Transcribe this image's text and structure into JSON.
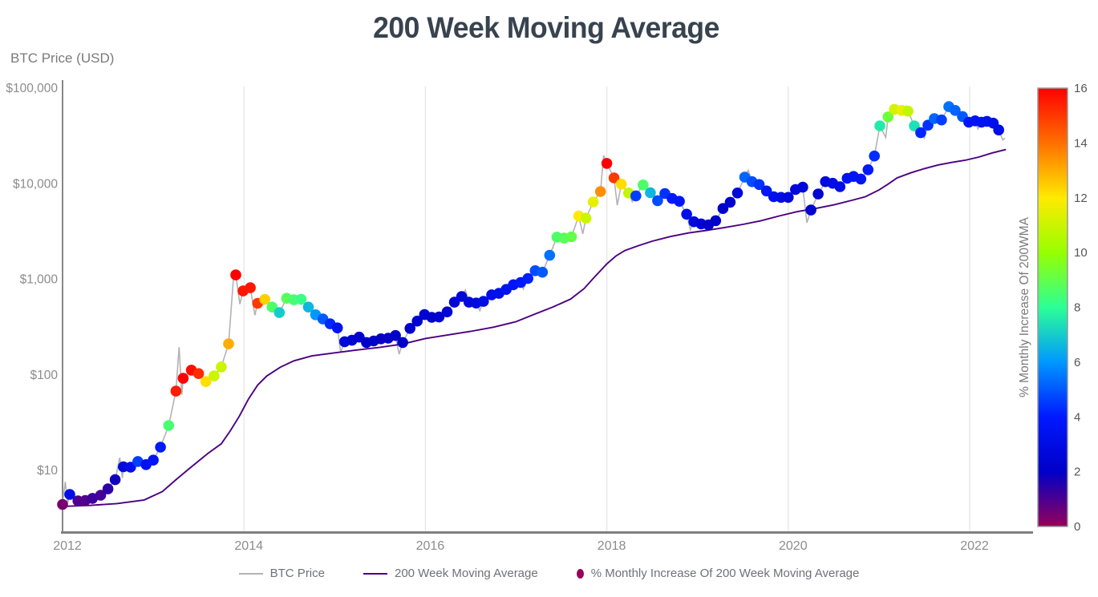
{
  "page_title": "200 Week Moving Average",
  "chart_data": {
    "type": "line+scatter",
    "title": "200 Week Moving Average",
    "ylabel": "BTC Price (USD)",
    "x_range": [
      2012,
      2022.67
    ],
    "y_range_log": [
      2.3,
      115000
    ],
    "grid": "vertical-only",
    "x_ticks": [
      {
        "label": "2012",
        "value": 2012
      },
      {
        "label": "2014",
        "value": 2014
      },
      {
        "label": "2016",
        "value": 2016
      },
      {
        "label": "2018",
        "value": 2018
      },
      {
        "label": "2020",
        "value": 2020
      },
      {
        "label": "2022",
        "value": 2022
      }
    ],
    "grid_years": [
      2014,
      2016,
      2018,
      2020,
      2022
    ],
    "y_ticks": [
      {
        "label": "$100,000",
        "value": 100000
      },
      {
        "label": "$10,000",
        "value": 10000
      },
      {
        "label": "$1,000",
        "value": 1000
      },
      {
        "label": "$100",
        "value": 100
      },
      {
        "label": "$10",
        "value": 10
      }
    ],
    "colorbar": {
      "label": "% Monthly Increase Of 200WMA",
      "min": 0,
      "max": 16,
      "ticks": [
        0,
        2,
        4,
        6,
        8,
        10,
        12,
        14,
        16
      ],
      "colorscale": [
        [
          0.0,
          [
            150,
            0,
            90
          ]
        ],
        [
          0.125,
          [
            0,
            0,
            200
          ]
        ],
        [
          0.25,
          [
            0,
            25,
            255
          ]
        ],
        [
          0.375,
          [
            0,
            152,
            255
          ]
        ],
        [
          0.5,
          [
            44,
            255,
            150
          ]
        ],
        [
          0.625,
          [
            151,
            255,
            0
          ]
        ],
        [
          0.75,
          [
            255,
            234,
            0
          ]
        ],
        [
          0.875,
          [
            255,
            111,
            0
          ]
        ],
        [
          1.0,
          [
            255,
            0,
            0
          ]
        ]
      ]
    },
    "legend": [
      {
        "label": "BTC Price",
        "type": "line",
        "color": "#b3b3b3"
      },
      {
        "label": "200 Week Moving Average",
        "type": "line",
        "color": "#4b0082"
      },
      {
        "label": "% Monthly Increase Of 200 Week Moving Average",
        "type": "dot",
        "color": "#96005a"
      }
    ],
    "dots": [
      [
        2012.0,
        4.4,
        0.4
      ],
      [
        2012.08,
        5.6,
        3.2
      ],
      [
        2012.17,
        4.8,
        1.0
      ],
      [
        2012.25,
        4.85,
        0.9
      ],
      [
        2012.33,
        5.1,
        1.2
      ],
      [
        2012.42,
        5.5,
        1.1
      ],
      [
        2012.5,
        6.4,
        1.4
      ],
      [
        2012.58,
        8.0,
        1.8
      ],
      [
        2012.67,
        10.9,
        2.8
      ],
      [
        2012.75,
        10.8,
        3.2
      ],
      [
        2012.83,
        12.4,
        4.6
      ],
      [
        2012.92,
        11.5,
        3.4
      ],
      [
        2013.0,
        12.8,
        3.6
      ],
      [
        2013.08,
        17.5,
        4.0
      ],
      [
        2013.17,
        29.5,
        8.5
      ],
      [
        2013.25,
        67.5,
        15.5
      ],
      [
        2013.33,
        92,
        16
      ],
      [
        2013.42,
        112,
        15.8
      ],
      [
        2013.5,
        103,
        15.2
      ],
      [
        2013.58,
        85,
        12.2
      ],
      [
        2013.67,
        97.5,
        11.0
      ],
      [
        2013.75,
        121,
        11.0
      ],
      [
        2013.83,
        211,
        13.0
      ],
      [
        2013.91,
        1110,
        16
      ],
      [
        2013.99,
        755,
        15.6
      ],
      [
        2014.07,
        815,
        15.6
      ],
      [
        2014.15,
        560,
        15.0
      ],
      [
        2014.23,
        617,
        12.4
      ],
      [
        2014.31,
        512,
        8.6
      ],
      [
        2014.39,
        448,
        7.0
      ],
      [
        2014.47,
        633,
        8.8
      ],
      [
        2014.55,
        610,
        8.5
      ],
      [
        2014.63,
        617,
        8.2
      ],
      [
        2014.71,
        512,
        6.6
      ],
      [
        2014.79,
        425,
        6.0
      ],
      [
        2014.87,
        384,
        5.0
      ],
      [
        2014.95,
        342,
        4.2
      ],
      [
        2015.03,
        310,
        3.5
      ],
      [
        2015.11,
        222,
        2.6
      ],
      [
        2015.19,
        230,
        2.4
      ],
      [
        2015.27,
        248,
        2.2
      ],
      [
        2015.35,
        218,
        2.0
      ],
      [
        2015.43,
        226,
        2.0
      ],
      [
        2015.51,
        238,
        1.9
      ],
      [
        2015.59,
        242,
        1.9
      ],
      [
        2015.67,
        258,
        2.0
      ],
      [
        2015.75,
        218,
        2.0
      ],
      [
        2015.83,
        306,
        2.1
      ],
      [
        2015.91,
        365,
        2.2
      ],
      [
        2015.99,
        427,
        2.3
      ],
      [
        2016.07,
        400,
        2.1
      ],
      [
        2016.15,
        403,
        2.2
      ],
      [
        2016.24,
        456,
        2.4
      ],
      [
        2016.32,
        576,
        2.5
      ],
      [
        2016.4,
        660,
        2.6
      ],
      [
        2016.48,
        576,
        2.7
      ],
      [
        2016.56,
        564,
        2.8
      ],
      [
        2016.64,
        587,
        3.0
      ],
      [
        2016.73,
        687,
        3.2
      ],
      [
        2016.81,
        712,
        3.3
      ],
      [
        2016.89,
        783,
        3.5
      ],
      [
        2016.97,
        877,
        3.7
      ],
      [
        2017.05,
        926,
        3.9
      ],
      [
        2017.13,
        1020,
        4.1
      ],
      [
        2017.21,
        1230,
        4.8
      ],
      [
        2017.29,
        1185,
        5.0
      ],
      [
        2017.37,
        1780,
        5.4
      ],
      [
        2017.45,
        2760,
        8.6
      ],
      [
        2017.53,
        2700,
        8.8
      ],
      [
        2017.61,
        2780,
        9.0
      ],
      [
        2017.69,
        4600,
        12.0
      ],
      [
        2017.77,
        4360,
        11.0
      ],
      [
        2017.85,
        6450,
        11.5
      ],
      [
        2017.93,
        8280,
        13.5
      ],
      [
        2018.0,
        16300,
        16.0
      ],
      [
        2018.08,
        11500,
        15.0
      ],
      [
        2018.16,
        9900,
        12.2
      ],
      [
        2018.24,
        8000,
        10.8
      ],
      [
        2018.32,
        7470,
        4.6
      ],
      [
        2018.4,
        9700,
        8.6
      ],
      [
        2018.48,
        8050,
        6.6
      ],
      [
        2018.56,
        6650,
        4.8
      ],
      [
        2018.64,
        7900,
        4.4
      ],
      [
        2018.72,
        7000,
        4.0
      ],
      [
        2018.8,
        6550,
        3.8
      ],
      [
        2018.88,
        4800,
        3.2
      ],
      [
        2018.96,
        4000,
        2.8
      ],
      [
        2019.04,
        3800,
        2.4
      ],
      [
        2019.12,
        3700,
        2.1
      ],
      [
        2019.2,
        4100,
        2.0
      ],
      [
        2019.28,
        5500,
        2.1
      ],
      [
        2019.36,
        6400,
        2.3
      ],
      [
        2019.44,
        8000,
        2.6
      ],
      [
        2019.52,
        11700,
        5.2
      ],
      [
        2019.6,
        10500,
        4.8
      ],
      [
        2019.68,
        9800,
        4.4
      ],
      [
        2019.76,
        8400,
        3.8
      ],
      [
        2019.84,
        7300,
        3.3
      ],
      [
        2019.92,
        7200,
        3.0
      ],
      [
        2020.0,
        7200,
        2.7
      ],
      [
        2020.08,
        8700,
        2.6
      ],
      [
        2020.16,
        9200,
        2.6
      ],
      [
        2020.25,
        5300,
        2.2
      ],
      [
        2020.33,
        7800,
        2.4
      ],
      [
        2020.41,
        10500,
        2.8
      ],
      [
        2020.49,
        10100,
        3.0
      ],
      [
        2020.57,
        9300,
        3.0
      ],
      [
        2020.65,
        11400,
        3.4
      ],
      [
        2020.72,
        11900,
        3.6
      ],
      [
        2020.8,
        11200,
        3.6
      ],
      [
        2020.88,
        14000,
        3.9
      ],
      [
        2020.95,
        19500,
        4.3
      ],
      [
        2021.01,
        40300,
        7.6
      ],
      [
        2021.1,
        50000,
        9.2
      ],
      [
        2021.17,
        60000,
        11.2
      ],
      [
        2021.25,
        58500,
        11.6
      ],
      [
        2021.32,
        57500,
        10.8
      ],
      [
        2021.39,
        40300,
        7.4
      ],
      [
        2021.46,
        34200,
        4.2
      ],
      [
        2021.54,
        41000,
        4.4
      ],
      [
        2021.61,
        48000,
        5.2
      ],
      [
        2021.69,
        46500,
        4.6
      ],
      [
        2021.77,
        64000,
        5.4
      ],
      [
        2021.84,
        58500,
        5.2
      ],
      [
        2021.92,
        50500,
        5.0
      ],
      [
        2021.99,
        44000,
        3.8
      ],
      [
        2022.06,
        45500,
        3.6
      ],
      [
        2022.13,
        44000,
        3.5
      ],
      [
        2022.19,
        45000,
        3.5
      ],
      [
        2022.26,
        43000,
        3.3
      ],
      [
        2022.32,
        36500,
        3.0
      ]
    ],
    "price_wicks": [
      [
        2012.03,
        7.6
      ],
      [
        2012.055,
        4.5
      ],
      [
        2012.63,
        13.6
      ],
      [
        2012.66,
        8.3
      ],
      [
        2013.285,
        195
      ],
      [
        2013.315,
        62
      ],
      [
        2013.89,
        1240
      ],
      [
        2013.955,
        550
      ],
      [
        2014.12,
        420
      ],
      [
        2015.065,
        172
      ],
      [
        2015.71,
        164
      ],
      [
        2016.44,
        770
      ],
      [
        2016.6,
        470
      ],
      [
        2017.08,
        790
      ],
      [
        2017.735,
        2990
      ],
      [
        2017.965,
        19800
      ],
      [
        2018.115,
        5950
      ],
      [
        2018.28,
        6500
      ],
      [
        2018.92,
        3300
      ],
      [
        2019.56,
        13800
      ],
      [
        2020.205,
        3900
      ],
      [
        2021.075,
        30500
      ],
      [
        2021.3,
        64800
      ],
      [
        2021.42,
        31500
      ],
      [
        2021.5,
        30000
      ],
      [
        2021.8,
        68000
      ],
      [
        2022.09,
        37500
      ],
      [
        2022.22,
        46500
      ],
      [
        2022.345,
        31800
      ],
      [
        2022.365,
        28800
      ],
      [
        2022.39,
        30000
      ]
    ],
    "wma_line": [
      [
        2012.0,
        4.2
      ],
      [
        2012.3,
        4.3
      ],
      [
        2012.6,
        4.5
      ],
      [
        2012.9,
        4.9
      ],
      [
        2013.1,
        6.0
      ],
      [
        2013.25,
        8.0
      ],
      [
        2013.4,
        10.5
      ],
      [
        2013.6,
        15
      ],
      [
        2013.75,
        19
      ],
      [
        2013.85,
        26
      ],
      [
        2013.95,
        37
      ],
      [
        2014.05,
        56
      ],
      [
        2014.15,
        78
      ],
      [
        2014.25,
        97
      ],
      [
        2014.4,
        120
      ],
      [
        2014.55,
        140
      ],
      [
        2014.75,
        158
      ],
      [
        2015.0,
        170
      ],
      [
        2015.25,
        182
      ],
      [
        2015.5,
        194
      ],
      [
        2015.75,
        210
      ],
      [
        2016.0,
        240
      ],
      [
        2016.25,
        262
      ],
      [
        2016.5,
        285
      ],
      [
        2016.75,
        315
      ],
      [
        2017.0,
        360
      ],
      [
        2017.2,
        430
      ],
      [
        2017.4,
        510
      ],
      [
        2017.6,
        620
      ],
      [
        2017.75,
        800
      ],
      [
        2017.85,
        1020
      ],
      [
        2018.0,
        1450
      ],
      [
        2018.1,
        1750
      ],
      [
        2018.2,
        2000
      ],
      [
        2018.35,
        2250
      ],
      [
        2018.5,
        2500
      ],
      [
        2018.7,
        2800
      ],
      [
        2018.9,
        3050
      ],
      [
        2019.1,
        3250
      ],
      [
        2019.3,
        3480
      ],
      [
        2019.5,
        3750
      ],
      [
        2019.7,
        4100
      ],
      [
        2019.9,
        4600
      ],
      [
        2020.1,
        5100
      ],
      [
        2020.3,
        5500
      ],
      [
        2020.5,
        6000
      ],
      [
        2020.7,
        6700
      ],
      [
        2020.85,
        7300
      ],
      [
        2021.0,
        8600
      ],
      [
        2021.1,
        9900
      ],
      [
        2021.2,
        11500
      ],
      [
        2021.35,
        13000
      ],
      [
        2021.5,
        14400
      ],
      [
        2021.65,
        15700
      ],
      [
        2021.8,
        16700
      ],
      [
        2021.95,
        17600
      ],
      [
        2022.1,
        19000
      ],
      [
        2022.25,
        21000
      ],
      [
        2022.4,
        22800
      ]
    ]
  },
  "colors": {
    "title": "#38434f",
    "axis_text": "#8c8c8c",
    "ylabel_text": "#7a7a7a",
    "legend_text": "#6d7278",
    "grid": "#e6e6e6",
    "spine_bottom": "#808080",
    "spine_left": "#888888",
    "price_line": "#b3b3b3",
    "wma_line": "#4b0082",
    "colorbar_border": "#999999",
    "colorbar_text": "#555555",
    "background": "#ffffff"
  }
}
